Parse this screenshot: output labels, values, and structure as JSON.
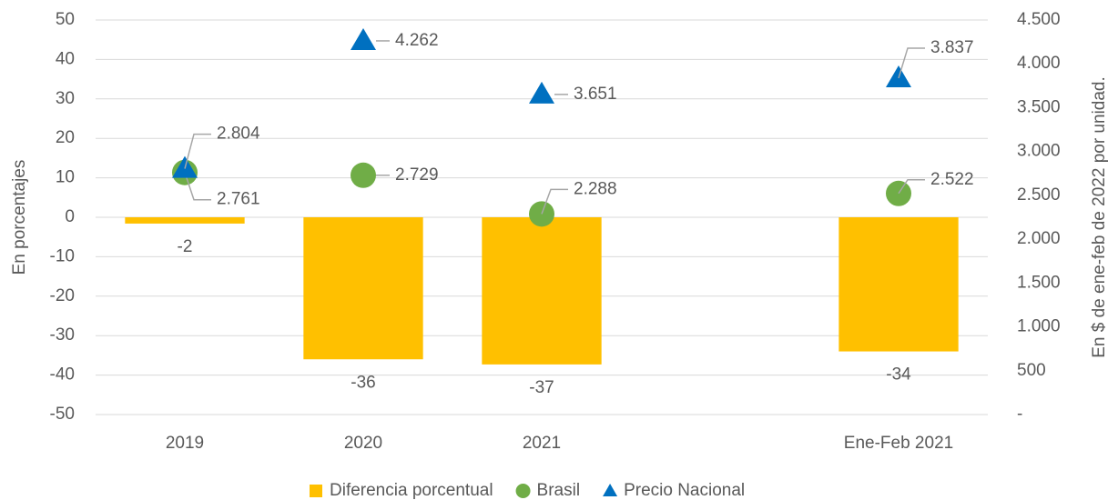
{
  "chart_data": {
    "type": "bar",
    "categories": [
      "2019",
      "2020",
      "2021",
      null,
      "Ene-Feb 2021"
    ],
    "ylabel": "En porcentajes",
    "y2label": "En $ de ene-feb de 2022 por unidad.",
    "ylim": [
      -50,
      50
    ],
    "yticks": [
      -50,
      -40,
      -30,
      -20,
      -10,
      0,
      10,
      20,
      30,
      40,
      50
    ],
    "y2lim": [
      0,
      4500
    ],
    "y2ticks": [
      {
        "value": 0,
        "label": "-"
      },
      500,
      {
        "value": 1000,
        "label": "1.000"
      },
      {
        "value": 1500,
        "label": "1.500"
      },
      {
        "value": 2000,
        "label": "2.000"
      },
      {
        "value": 2500,
        "label": "2.500"
      },
      {
        "value": 3000,
        "label": "3.000"
      },
      {
        "value": 3500,
        "label": "3.500"
      },
      {
        "value": 4000,
        "label": "4.000"
      },
      {
        "value": 4500,
        "label": "4.500"
      }
    ],
    "grid": true,
    "legend": "bottom",
    "series": [
      {
        "name": "Diferencia porcentual",
        "type": "bar",
        "color": "#ffc000",
        "values": [
          -1.6,
          -36,
          -37.3,
          null,
          -34
        ],
        "value_labels": [
          "-2",
          "-36",
          "-37",
          null,
          "-34"
        ]
      },
      {
        "name": "Brasil",
        "type": "scatter",
        "marker": "circle",
        "axis": "y2",
        "color": "#70ad47",
        "values": [
          2761,
          2729,
          2288,
          null,
          2522
        ],
        "value_labels": [
          "2.761",
          "2.729",
          "2.288",
          null,
          "2.522"
        ]
      },
      {
        "name": "Precio Nacional",
        "type": "scatter",
        "marker": "triangle",
        "axis": "y2",
        "color": "#0070c0",
        "values": [
          2804,
          4262,
          3651,
          null,
          3837
        ],
        "value_labels": [
          "2.804",
          "4.262",
          "3.651",
          null,
          "3.837"
        ]
      }
    ]
  }
}
